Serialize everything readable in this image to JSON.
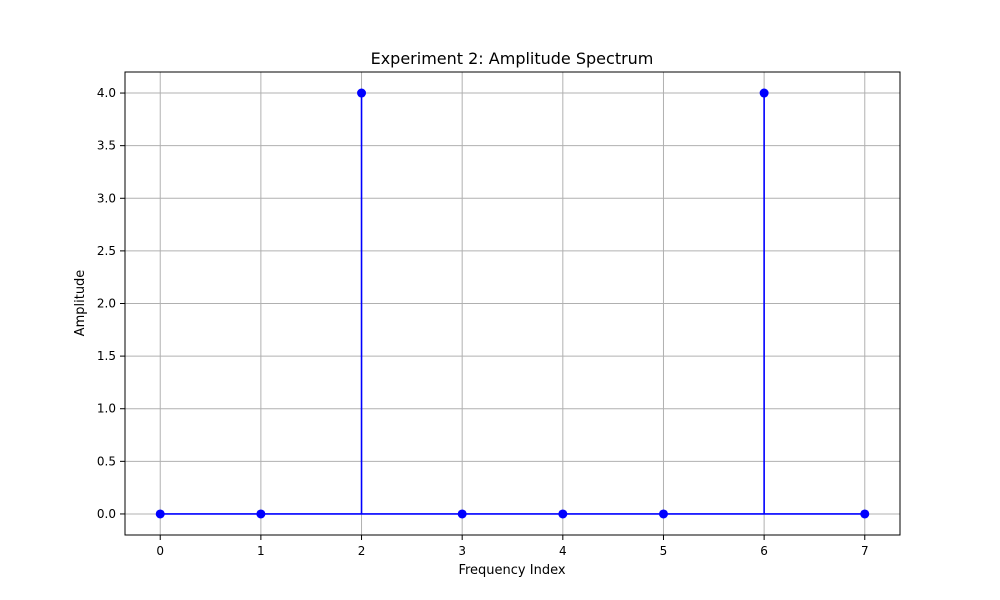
{
  "chart_data": {
    "type": "stem",
    "title": "Experiment 2: Amplitude Spectrum",
    "xlabel": "Frequency Index",
    "ylabel": "Amplitude",
    "x": [
      0,
      1,
      2,
      3,
      4,
      5,
      6,
      7
    ],
    "values": [
      0,
      0,
      4,
      0,
      0,
      0,
      4,
      0
    ],
    "xlim": [
      -0.35,
      7.35
    ],
    "ylim": [
      -0.2,
      4.2
    ],
    "x_ticks": [
      0,
      1,
      2,
      3,
      4,
      5,
      6,
      7
    ],
    "x_tick_labels": [
      "0",
      "1",
      "2",
      "3",
      "4",
      "5",
      "6",
      "7"
    ],
    "y_ticks": [
      0,
      0.5,
      1,
      1.5,
      2,
      2.5,
      3,
      3.5,
      4
    ],
    "y_tick_labels": [
      "0.0",
      "0.5",
      "1.0",
      "1.5",
      "2.0",
      "2.5",
      "3.0",
      "3.5",
      "4.0"
    ],
    "grid": true,
    "colors": {
      "series": "#0000ff",
      "grid": "#b0b0b0",
      "axes": "#000000"
    }
  }
}
